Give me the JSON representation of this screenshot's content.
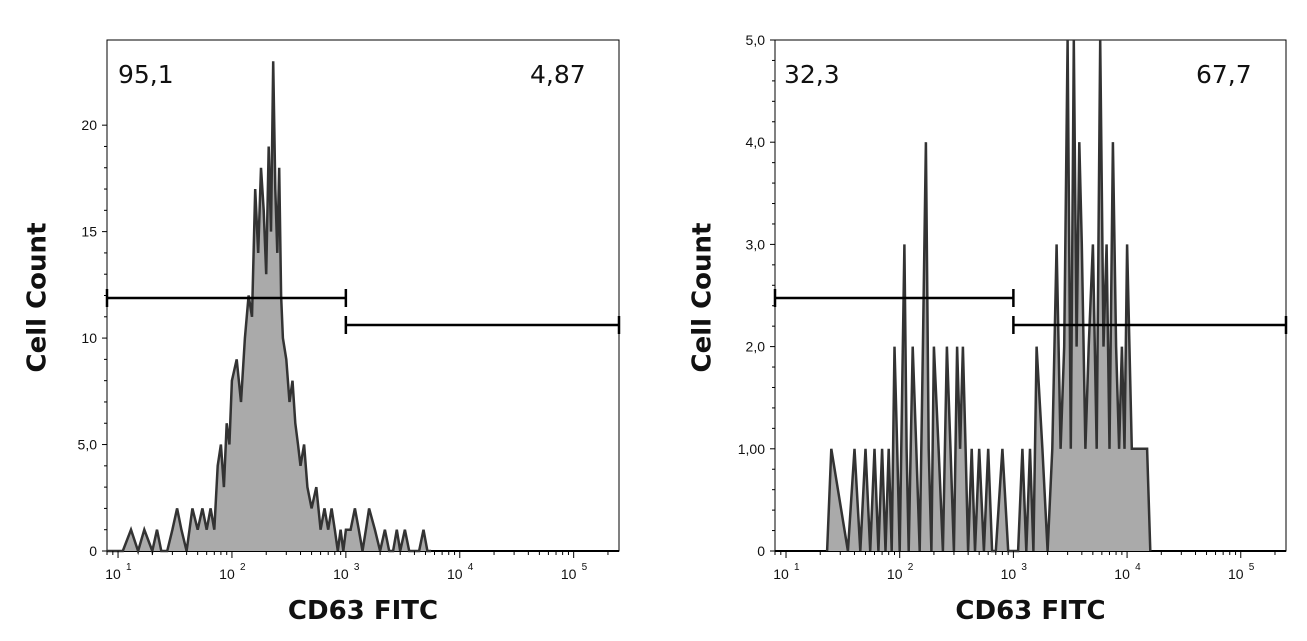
{
  "chart_data": [
    {
      "type": "histogram",
      "xscale": "log",
      "xlabel": "CD63 FITC",
      "ylabel": "Cell Count",
      "xlim": [
        8,
        250000
      ],
      "ylim": [
        0,
        24
      ],
      "x_ticks": [
        {
          "value": 10,
          "base": "10",
          "exp": "1"
        },
        {
          "value": 100,
          "base": "10",
          "exp": "2"
        },
        {
          "value": 1000,
          "base": "10",
          "exp": "3"
        },
        {
          "value": 10000,
          "base": "10",
          "exp": "4"
        },
        {
          "value": 100000,
          "base": "10",
          "exp": "5"
        }
      ],
      "y_ticks": [
        {
          "value": 0,
          "label": "0"
        },
        {
          "value": 5,
          "label": "5,0"
        },
        {
          "value": 10,
          "label": "10"
        },
        {
          "value": 15,
          "label": "15"
        },
        {
          "value": 20,
          "label": "20"
        }
      ],
      "gates": [
        {
          "label": "95,1",
          "from": 8,
          "to": 1000,
          "level": 11.8
        },
        {
          "label": "4,87",
          "from": 1000,
          "to": 250000,
          "level": 10.6
        }
      ],
      "x": [
        8,
        11,
        13,
        15,
        17,
        20,
        22,
        24,
        27,
        30,
        33,
        36,
        40,
        45,
        50,
        55,
        60,
        65,
        70,
        75,
        80,
        85,
        90,
        95,
        100,
        110,
        120,
        130,
        140,
        150,
        160,
        170,
        180,
        190,
        200,
        210,
        220,
        230,
        240,
        250,
        260,
        270,
        280,
        300,
        320,
        340,
        360,
        380,
        400,
        430,
        460,
        500,
        550,
        600,
        650,
        700,
        750,
        800,
        850,
        900,
        950,
        1000,
        1100,
        1200,
        1300,
        1400,
        1500,
        1600,
        1800,
        2000,
        2200,
        2400,
        2600,
        2800,
        3000,
        3300,
        3600,
        4000,
        4400,
        4800,
        5200,
        5600
      ],
      "values": [
        0,
        0,
        1,
        0,
        1,
        0,
        1,
        0,
        0,
        1,
        2,
        1,
        0,
        2,
        1,
        2,
        1,
        2,
        1,
        4,
        5,
        3,
        6,
        5,
        8,
        9,
        7,
        10,
        12,
        11,
        17,
        14,
        18,
        16,
        13,
        19,
        15,
        23,
        17,
        14,
        18,
        12,
        10,
        9,
        7,
        8,
        6,
        5,
        4,
        5,
        3,
        2,
        3,
        1,
        2,
        1,
        2,
        1,
        0,
        1,
        0,
        1,
        1,
        2,
        1,
        0,
        1,
        2,
        1,
        0,
        1,
        0,
        0,
        1,
        0,
        1,
        0,
        0,
        0,
        1,
        0,
        0
      ]
    },
    {
      "type": "histogram",
      "xscale": "log",
      "xlabel": "CD63 FITC",
      "ylabel": "Cell Count",
      "xlim": [
        8,
        250000
      ],
      "ylim": [
        0,
        5.0
      ],
      "x_ticks": [
        {
          "value": 10,
          "base": "10",
          "exp": "1"
        },
        {
          "value": 100,
          "base": "10",
          "exp": "2"
        },
        {
          "value": 1000,
          "base": "10",
          "exp": "3"
        },
        {
          "value": 10000,
          "base": "10",
          "exp": "4"
        },
        {
          "value": 100000,
          "base": "10",
          "exp": "5"
        }
      ],
      "y_ticks": [
        {
          "value": 0,
          "label": "0"
        },
        {
          "value": 1,
          "label": "1,00"
        },
        {
          "value": 2,
          "label": "2,0"
        },
        {
          "value": 3,
          "label": "3,0"
        },
        {
          "value": 4,
          "label": "4,0"
        },
        {
          "value": 5,
          "label": "5,0"
        }
      ],
      "gates": [
        {
          "label": "32,3",
          "from": 8,
          "to": 1000,
          "level": 2.45
        },
        {
          "label": "67,7",
          "from": 1000,
          "to": 250000,
          "level": 2.2
        }
      ],
      "x": [
        23,
        25,
        35,
        40,
        45,
        50,
        55,
        60,
        65,
        70,
        75,
        80,
        85,
        90,
        95,
        100,
        110,
        115,
        120,
        130,
        140,
        150,
        160,
        170,
        180,
        190,
        200,
        220,
        240,
        260,
        280,
        300,
        320,
        340,
        360,
        380,
        400,
        430,
        460,
        500,
        550,
        600,
        650,
        700,
        800,
        900,
        1000,
        1100,
        1200,
        1300,
        1400,
        1500,
        1600,
        1800,
        2000,
        2200,
        2400,
        2600,
        2800,
        3000,
        3200,
        3400,
        3600,
        3800,
        4000,
        4300,
        4600,
        5000,
        5400,
        5800,
        6200,
        6600,
        7000,
        7500,
        8000,
        8500,
        9000,
        9500,
        10000,
        11000,
        12000,
        13000,
        14000,
        15000,
        16000
      ],
      "values": [
        0,
        1,
        0,
        1,
        0,
        1,
        0,
        1,
        0,
        1,
        0,
        1,
        0,
        2,
        1,
        0,
        3,
        1,
        0,
        2,
        1,
        0,
        2,
        4,
        1,
        0,
        2,
        1,
        0,
        2,
        1,
        0,
        2,
        1,
        2,
        1,
        0,
        1,
        0,
        1,
        0,
        1,
        0,
        0,
        1,
        0,
        0,
        0,
        1,
        0,
        1,
        0,
        2,
        1,
        0,
        1,
        3,
        1,
        2,
        5,
        1,
        5,
        2,
        4,
        3,
        1,
        2,
        3,
        1,
        5,
        2,
        3,
        1,
        4,
        2,
        1,
        2,
        1,
        3,
        1,
        1,
        1,
        1,
        1,
        0
      ]
    }
  ]
}
